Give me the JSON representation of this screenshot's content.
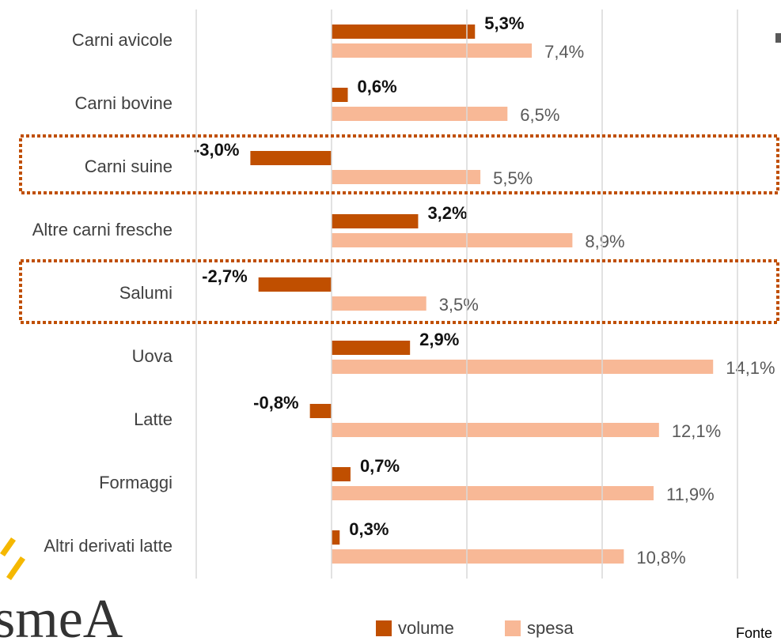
{
  "chart_data": {
    "type": "hbar",
    "categories": [
      "Carni avicole",
      "Carni bovine",
      "Carni suine",
      "Altre carni fresche",
      "Salumi",
      "Uova",
      "Latte",
      "Formaggi",
      "Altri derivati latte"
    ],
    "series": [
      {
        "name": "volume",
        "color": "#c04f00",
        "values": [
          5.3,
          0.6,
          -3.0,
          3.2,
          -2.7,
          2.9,
          -0.8,
          0.7,
          0.3
        ],
        "value_labels": [
          "5,3%",
          "0,6%",
          "-3,0%",
          "3,2%",
          "-2,7%",
          "2,9%",
          "-0,8%",
          "0,7%",
          "0,3%"
        ]
      },
      {
        "name": "spesa",
        "color": "#f8b896",
        "values": [
          7.4,
          6.5,
          5.5,
          8.9,
          3.5,
          14.1,
          12.1,
          11.9,
          10.8
        ],
        "value_labels": [
          "7,4%",
          "6,5%",
          "5,5%",
          "8,9%",
          "3,5%",
          "14,1%",
          "12,1%",
          "11,9%",
          "10,8%"
        ]
      }
    ],
    "xlim": [
      -5,
      15
    ],
    "xticks": [
      -5,
      0,
      5,
      10,
      15
    ],
    "grid": true,
    "legend": "bottom",
    "logo": "smeA",
    "source": "Fonte"
  }
}
